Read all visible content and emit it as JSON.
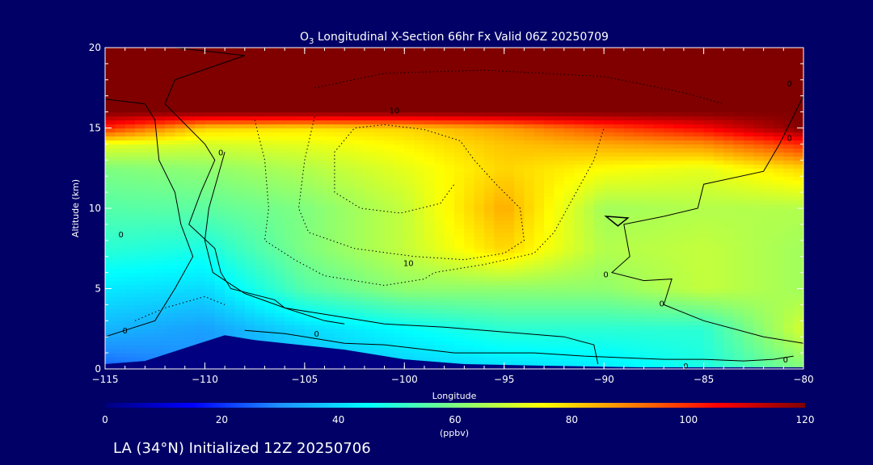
{
  "chart_data": {
    "type": "heatmap",
    "title_prefix": "O",
    "title_subscript": "3",
    "title_rest": " Longitudinal X-Section 66hr  Fx Valid 06Z 20250709",
    "xlabel": "Longitude",
    "ylabel": "Altitude (km)",
    "xlim": [
      -115,
      -80
    ],
    "ylim": [
      0,
      20
    ],
    "x_ticks": [
      -115,
      -110,
      -105,
      -100,
      -95,
      -90,
      -85,
      -80
    ],
    "x_tick_labels": [
      "−115",
      "−110",
      "−105",
      "−100",
      "−95",
      "−90",
      "−85",
      "−80"
    ],
    "y_ticks": [
      0,
      5,
      10,
      15,
      20
    ],
    "y_tick_labels": [
      "0",
      "5",
      "10",
      "15",
      "20"
    ],
    "colorbar": {
      "label": "(ppbv)",
      "min": 0,
      "max": 120,
      "ticks": [
        0,
        20,
        40,
        60,
        80,
        100,
        120
      ],
      "tick_labels": [
        "0",
        "20",
        "40",
        "60",
        "80",
        "100",
        "120"
      ],
      "colors": [
        "#000080",
        "#0000ff",
        "#1e90ff",
        "#00ffff",
        "#7fff7f",
        "#ffff00",
        "#ff8000",
        "#ff0000",
        "#800000"
      ]
    },
    "terrain_top_km": [
      {
        "lon": -115,
        "alt": 0.3
      },
      {
        "lon": -113,
        "alt": 0.5
      },
      {
        "lon": -111,
        "alt": 1.3
      },
      {
        "lon": -109,
        "alt": 2.1
      },
      {
        "lon": -107.5,
        "alt": 1.8
      },
      {
        "lon": -106,
        "alt": 1.6
      },
      {
        "lon": -103,
        "alt": 1.2
      },
      {
        "lon": -100,
        "alt": 0.6
      },
      {
        "lon": -97,
        "alt": 0.3
      },
      {
        "lon": -93,
        "alt": 0.2
      },
      {
        "lon": -88,
        "alt": 0.1
      },
      {
        "lon": -83,
        "alt": 0.1
      },
      {
        "lon": -80,
        "alt": 0.1
      }
    ],
    "ozone_field": {
      "lon": [
        -115,
        -110,
        -105,
        -100,
        -95,
        -90,
        -85,
        -80
      ],
      "alt": [
        0,
        2.5,
        5,
        7.5,
        10,
        12.5,
        14,
        15,
        16,
        20
      ],
      "values_ppbv": [
        [
          25,
          30,
          35,
          38,
          40,
          42,
          48,
          60
        ],
        [
          35,
          32,
          40,
          45,
          50,
          50,
          50,
          70
        ],
        [
          42,
          40,
          55,
          62,
          62,
          62,
          68,
          64
        ],
        [
          50,
          48,
          60,
          68,
          80,
          66,
          68,
          64
        ],
        [
          55,
          56,
          60,
          68,
          85,
          64,
          66,
          66
        ],
        [
          60,
          62,
          66,
          72,
          80,
          75,
          72,
          80
        ],
        [
          72,
          70,
          72,
          76,
          82,
          85,
          88,
          100
        ],
        [
          100,
          80,
          78,
          80,
          86,
          96,
          105,
          120
        ],
        [
          120,
          120,
          120,
          120,
          120,
          120,
          120,
          120
        ],
        [
          120,
          120,
          120,
          120,
          120,
          120,
          120,
          120
        ]
      ]
    },
    "contour_labels": [
      {
        "text": "10",
        "lon": -100.5,
        "alt": 16.1
      },
      {
        "text": "10",
        "lon": -99.8,
        "alt": 6.6
      },
      {
        "text": "0",
        "lon": -109.2,
        "alt": 13.5
      },
      {
        "text": "0",
        "lon": -114.2,
        "alt": 8.4
      },
      {
        "text": "0",
        "lon": -114.0,
        "alt": 2.4
      },
      {
        "text": "0",
        "lon": -104.4,
        "alt": 2.2
      },
      {
        "text": "0",
        "lon": -89.9,
        "alt": 5.9
      },
      {
        "text": "0",
        "lon": -87.1,
        "alt": 4.1
      },
      {
        "text": "0",
        "lon": -85.9,
        "alt": 0.2
      },
      {
        "text": "0",
        "lon": -80.9,
        "alt": 0.6
      },
      {
        "text": "0",
        "lon": -80.7,
        "alt": 14.4
      },
      {
        "text": "0",
        "lon": -80.7,
        "alt": 17.8
      }
    ]
  },
  "footer": {
    "caption": "LA (34°N) Initialized 12Z 20250706"
  },
  "colors": {
    "background": "#000066",
    "text": "#ffffff",
    "contour": "#000000"
  }
}
